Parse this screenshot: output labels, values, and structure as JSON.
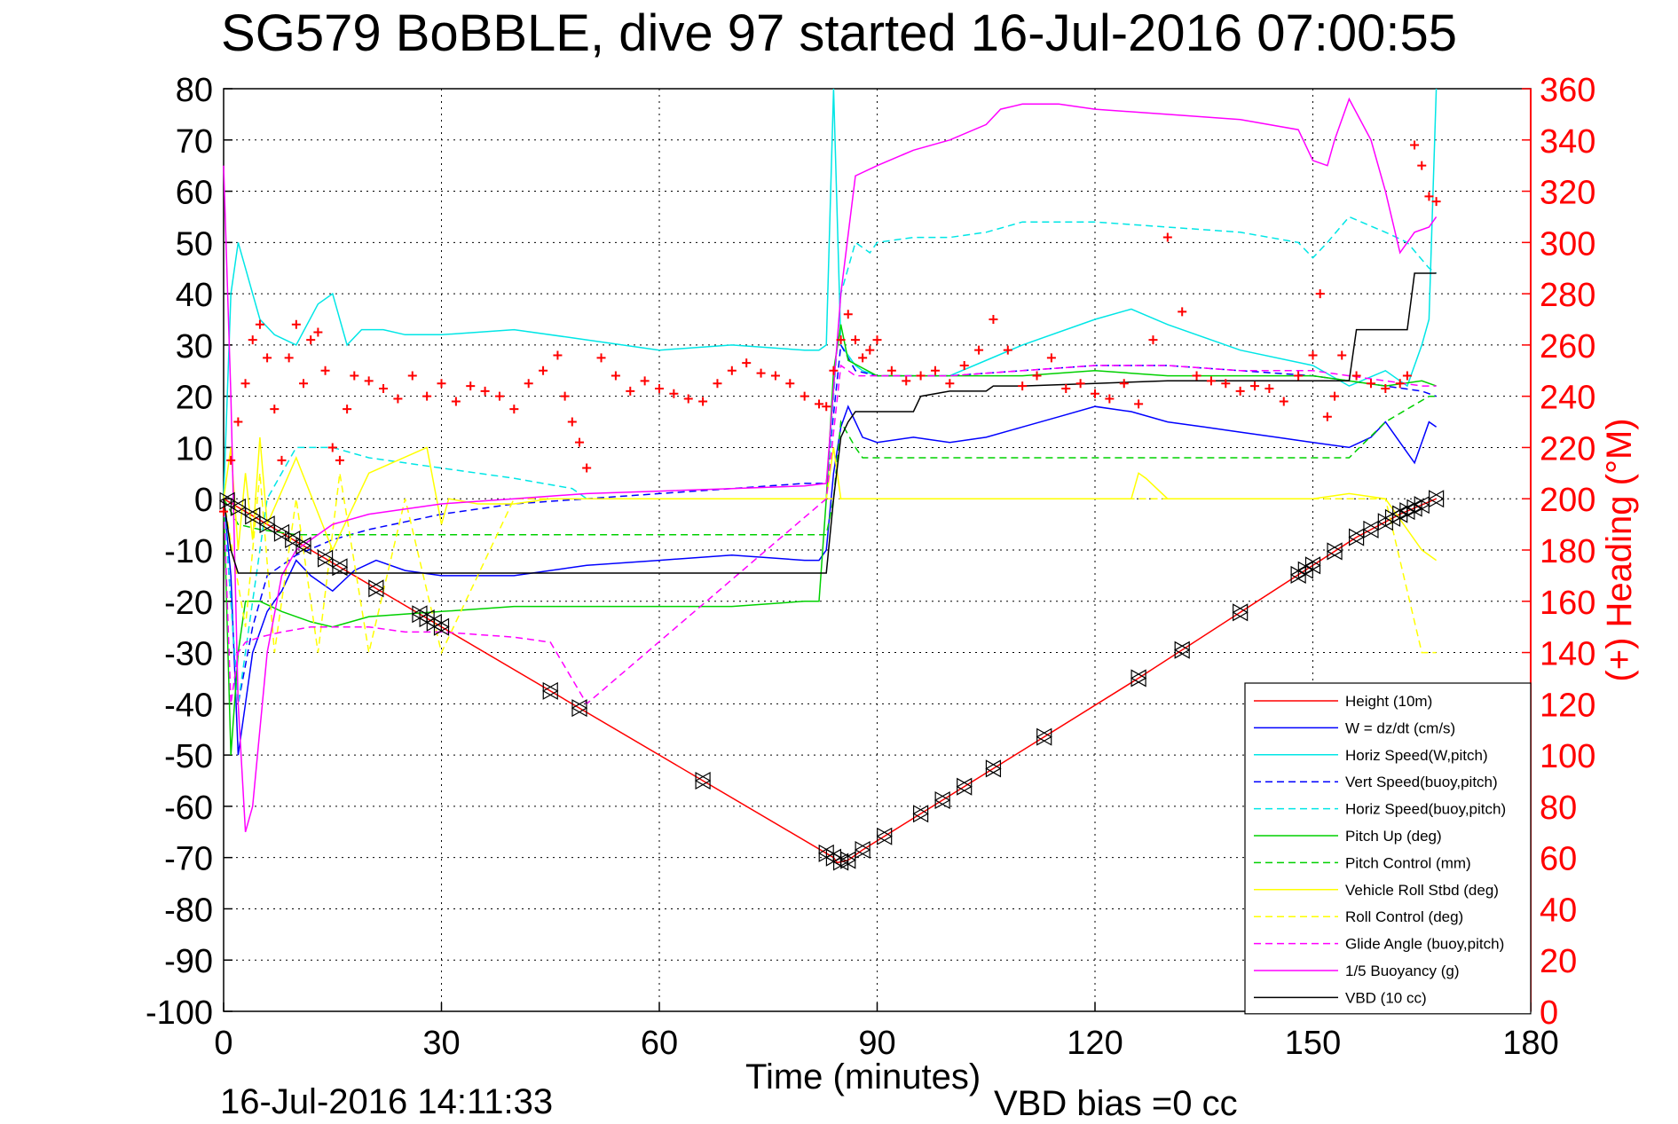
{
  "chart_data": {
    "type": "line",
    "title": "SG579 BoBBLE, dive 97 started 16-Jul-2016 07:00:55",
    "xlabel": "Time (minutes)",
    "ylabel": "",
    "y2label": "(+) Heading (°M)",
    "xlim": [
      0,
      180
    ],
    "ylim": [
      -100,
      80
    ],
    "y2lim": [
      0,
      360
    ],
    "xticks": [
      "0",
      "30",
      "60",
      "90",
      "120",
      "150",
      "180"
    ],
    "yticks": [
      "80",
      "70",
      "60",
      "50",
      "40",
      "30",
      "20",
      "10",
      "0",
      "-10",
      "-20",
      "-30",
      "-40",
      "-50",
      "-60",
      "-70",
      "-80",
      "-90",
      "-100"
    ],
    "y2ticks": [
      "360",
      "340",
      "320",
      "300",
      "280",
      "260",
      "240",
      "220",
      "200",
      "180",
      "160",
      "140",
      "120",
      "100",
      "80",
      "60",
      "40",
      "20",
      "0"
    ],
    "grid": true,
    "legend_position": "bottom-right",
    "footer_left": "16-Jul-2016 14:11:33",
    "footer_right": "VBD bias =0 cc",
    "series": [
      {
        "name": "Height (10m)",
        "color": "#ff0000",
        "dash": "solid",
        "x": [
          0,
          84,
          84.5,
          86,
          88,
          126,
          150,
          156,
          162,
          167
        ],
        "y": [
          0,
          -70,
          -71,
          -70.5,
          -68.5,
          -35,
          -13,
          -7.5,
          -3,
          0
        ]
      },
      {
        "name": "W = dz/dt (cm/s)",
        "color": "#0000ff",
        "dash": "solid",
        "x": [
          0,
          1,
          2,
          3,
          4,
          6,
          8,
          10,
          12,
          15,
          18,
          21,
          25,
          30,
          40,
          50,
          60,
          70,
          80,
          82,
          83,
          84,
          85,
          86,
          87,
          88,
          90,
          95,
          100,
          105,
          110,
          115,
          120,
          125,
          130,
          135,
          140,
          145,
          150,
          155,
          158,
          160,
          162,
          164,
          166,
          167
        ],
        "y": [
          0,
          -15,
          -50,
          -40,
          -30,
          -22,
          -18,
          -12,
          -15,
          -18,
          -14,
          -12,
          -14,
          -15,
          -15,
          -13,
          -12,
          -11,
          -12,
          -12,
          -10,
          5,
          14,
          18,
          15,
          12,
          11,
          12,
          11,
          12,
          14,
          16,
          18,
          17,
          15,
          14,
          13,
          12,
          11,
          10,
          12,
          15,
          11,
          7,
          15,
          14
        ]
      },
      {
        "name": "Horiz Speed(W,pitch)",
        "color": "#00e6e6",
        "dash": "solid",
        "x": [
          0,
          1,
          2,
          3,
          4,
          5,
          7,
          10,
          13,
          15,
          17,
          19,
          22,
          25,
          30,
          40,
          50,
          60,
          70,
          80,
          82,
          83,
          84,
          85,
          86,
          87,
          88,
          90,
          95,
          100,
          110,
          120,
          125,
          130,
          140,
          150,
          155,
          160,
          163,
          165,
          166,
          167
        ],
        "y": [
          0,
          40,
          50,
          45,
          40,
          35,
          32,
          30,
          38,
          40,
          30,
          33,
          33,
          32,
          32,
          33,
          31,
          29,
          30,
          29,
          29,
          30,
          80,
          30,
          28,
          26,
          25,
          24,
          24,
          24,
          30,
          35,
          37,
          34,
          29,
          26,
          22,
          25,
          22,
          30,
          35,
          80
        ]
      },
      {
        "name": "Vert Speed(buoy,pitch)",
        "color": "#0000ff",
        "dash": "dashed",
        "x": [
          0,
          2,
          4,
          6,
          10,
          15,
          20,
          30,
          40,
          50,
          60,
          70,
          80,
          83,
          85,
          87,
          90,
          100,
          110,
          120,
          130,
          140,
          150,
          155,
          160,
          165,
          167
        ],
        "y": [
          0,
          -40,
          -25,
          -15,
          -11,
          -8,
          -6,
          -3,
          -1,
          0,
          1,
          2,
          3,
          3,
          30,
          25,
          24,
          24,
          25,
          26,
          26,
          25,
          24,
          23,
          22,
          21,
          20
        ]
      },
      {
        "name": "Horiz Speed(buoy,pitch)",
        "color": "#00e6e6",
        "dash": "dashed",
        "x": [
          0,
          2,
          4,
          6,
          10,
          15,
          20,
          30,
          40,
          48,
          50,
          83,
          85,
          87,
          89,
          90,
          95,
          100,
          105,
          110,
          120,
          130,
          140,
          148,
          150,
          152,
          155,
          160,
          163,
          166,
          167
        ],
        "y": [
          0,
          -40,
          -20,
          0,
          10,
          10,
          8,
          6,
          4,
          2,
          0,
          0,
          40,
          50,
          48,
          50,
          51,
          51,
          52,
          54,
          54,
          53,
          52,
          50,
          47,
          50,
          55,
          52,
          50,
          45,
          44
        ]
      },
      {
        "name": "Pitch Up (deg)",
        "color": "#00d000",
        "dash": "solid",
        "x": [
          0,
          1,
          2,
          3,
          5,
          8,
          12,
          15,
          20,
          30,
          40,
          50,
          60,
          70,
          80,
          82,
          83,
          84,
          85,
          86,
          90,
          100,
          110,
          120,
          130,
          140,
          150,
          155,
          160,
          165,
          167
        ],
        "y": [
          0,
          -50,
          -30,
          -20,
          -20,
          -22,
          -24,
          -25,
          -23,
          -22,
          -21,
          -21,
          -21,
          -21,
          -20,
          -20,
          0,
          25,
          34,
          27,
          24,
          24,
          24,
          25,
          24,
          24,
          24,
          23,
          22,
          23,
          22
        ]
      },
      {
        "name": "Pitch Control (mm)",
        "color": "#00d000",
        "dash": "dashed",
        "x": [
          0,
          2,
          5,
          10,
          20,
          30,
          50,
          80,
          83,
          84,
          85,
          87,
          88,
          100,
          110,
          130,
          150,
          155,
          160,
          166,
          167
        ],
        "y": [
          0,
          -5,
          -6,
          -7,
          -7,
          -7,
          -7,
          -7,
          -7,
          0,
          15,
          10,
          8,
          8,
          8,
          8,
          8,
          8,
          15,
          20,
          20
        ]
      },
      {
        "name": "Vehicle Roll Stbd (deg)",
        "color": "#ffff00",
        "dash": "solid",
        "x": [
          0,
          1,
          2,
          3,
          4,
          5,
          6,
          10,
          15,
          20,
          28,
          30,
          31,
          35,
          40,
          45,
          50,
          60,
          70,
          80,
          83,
          84,
          85,
          90,
          100,
          110,
          120,
          125,
          126,
          127,
          130,
          140,
          150,
          155,
          160,
          165,
          167
        ],
        "y": [
          0,
          10,
          -10,
          5,
          -8,
          12,
          -5,
          8,
          -10,
          5,
          10,
          -5,
          0,
          -1,
          -1,
          0,
          0,
          0,
          0,
          0,
          0,
          10,
          0,
          0,
          0,
          0,
          0,
          0,
          5,
          4,
          0,
          0,
          0,
          1,
          0,
          -10,
          -12
        ]
      },
      {
        "name": "Roll Control (deg)",
        "color": "#ffff00",
        "dash": "dashed",
        "x": [
          0,
          3,
          5,
          7,
          10,
          13,
          16,
          20,
          25,
          30,
          40,
          50,
          60,
          70,
          80,
          90,
          100,
          110,
          120,
          130,
          140,
          150,
          155,
          160,
          165,
          167
        ],
        "y": [
          0,
          -25,
          5,
          -30,
          0,
          -30,
          5,
          -30,
          0,
          -30,
          0,
          0,
          0,
          0,
          0,
          0,
          0,
          0,
          0,
          0,
          0,
          0,
          0,
          0,
          -30,
          -30
        ]
      },
      {
        "name": "Glide Angle (buoy,pitch)",
        "color": "#ff00ff",
        "dash": "dashed",
        "x": [
          0,
          1,
          2,
          3,
          5,
          8,
          12,
          15,
          20,
          25,
          30,
          40,
          45,
          50,
          83,
          85,
          87,
          90,
          100,
          110,
          120,
          130,
          140,
          150,
          155,
          160,
          165,
          167
        ],
        "y": [
          0,
          -40,
          -30,
          -28,
          -27,
          -26,
          -25,
          -25,
          -25,
          -26,
          -26,
          -27,
          -28,
          -40,
          0,
          26,
          24,
          24,
          24,
          25,
          26,
          26,
          25,
          25,
          24,
          23,
          22,
          22
        ]
      },
      {
        "name": "1/5 Buoyancy (g)",
        "color": "#ff00ff",
        "dash": "solid",
        "x": [
          0,
          1,
          2,
          3,
          4,
          6,
          8,
          10,
          15,
          20,
          30,
          40,
          50,
          60,
          70,
          80,
          83,
          85,
          87,
          90,
          95,
          100,
          105,
          107,
          110,
          115,
          120,
          130,
          140,
          148,
          150,
          152,
          153,
          155,
          158,
          160,
          162,
          164,
          166,
          167
        ],
        "y": [
          65,
          20,
          -40,
          -65,
          -60,
          -30,
          -15,
          -10,
          -5,
          -3,
          -1,
          0,
          1,
          1.5,
          2,
          2.5,
          3,
          40,
          63,
          65,
          68,
          70,
          73,
          76,
          77,
          77,
          76,
          75,
          74,
          72,
          66,
          65,
          70,
          78,
          70,
          60,
          48,
          52,
          53,
          55
        ]
      },
      {
        "name": "VBD (10 cc)",
        "color": "#000000",
        "dash": "solid",
        "x": [
          0,
          1,
          2,
          8,
          15,
          20,
          30,
          50,
          60,
          70,
          80,
          82,
          83,
          84,
          85,
          86,
          87,
          95,
          96,
          100,
          102,
          105,
          106,
          110,
          120,
          130,
          140,
          150,
          155,
          156,
          160,
          163,
          164,
          167
        ],
        "y": [
          0,
          -10,
          -14.5,
          -14.5,
          -14.5,
          -14.5,
          -14.5,
          -14.5,
          -14.5,
          -14.5,
          -14.5,
          -14.5,
          -14.5,
          0,
          12,
          15,
          17,
          17,
          20,
          21,
          21,
          21,
          22,
          22,
          22.5,
          23,
          23,
          23,
          23,
          33,
          33,
          33,
          44,
          44
        ]
      }
    ],
    "heading_series": {
      "name": "Heading",
      "color": "#ff0000",
      "marker": "+",
      "axis": "right",
      "x": [
        0,
        1,
        2,
        3,
        4,
        5,
        6,
        7,
        8,
        9,
        10,
        11,
        12,
        13,
        14,
        15,
        16,
        17,
        18,
        20,
        22,
        24,
        26,
        28,
        30,
        32,
        34,
        36,
        38,
        40,
        42,
        44,
        46,
        47,
        48,
        49,
        50,
        52,
        54,
        56,
        58,
        60,
        62,
        64,
        66,
        68,
        70,
        72,
        74,
        76,
        78,
        80,
        82,
        83,
        84,
        85,
        86,
        87,
        88,
        89,
        90,
        92,
        94,
        96,
        98,
        100,
        102,
        104,
        106,
        108,
        110,
        112,
        114,
        116,
        118,
        120,
        122,
        124,
        126,
        128,
        130,
        132,
        134,
        136,
        138,
        140,
        142,
        144,
        146,
        148,
        150,
        151,
        152,
        153,
        154,
        156,
        158,
        160,
        162,
        163,
        164,
        165,
        166,
        167
      ],
      "y": [
        195,
        215,
        230,
        245,
        262,
        268,
        255,
        235,
        215,
        255,
        268,
        245,
        262,
        265,
        250,
        220,
        215,
        235,
        248,
        246,
        243,
        239,
        248,
        240,
        245,
        238,
        244,
        242,
        240,
        235,
        245,
        250,
        256,
        240,
        230,
        222,
        212,
        255,
        248,
        242,
        246,
        243,
        241,
        239,
        238,
        245,
        250,
        253,
        249,
        248,
        245,
        240,
        237,
        236,
        250,
        262,
        272,
        262,
        255,
        258,
        262,
        250,
        246,
        248,
        250,
        245,
        252,
        258,
        270,
        258,
        244,
        248,
        255,
        243,
        245,
        241,
        239,
        245,
        237,
        262,
        302,
        273,
        248,
        246,
        245,
        242,
        244,
        243,
        238,
        248,
        256,
        280,
        232,
        240,
        256,
        248,
        245,
        243,
        245,
        248,
        338,
        330,
        318,
        316
      ]
    },
    "marker_points": {
      "name": "data markers",
      "color": "#000000",
      "x": [
        0.5,
        2,
        4,
        6,
        8,
        9.5,
        11,
        14,
        16,
        21,
        27,
        28,
        29,
        30,
        45,
        49,
        66,
        83,
        84,
        85,
        86,
        88,
        91,
        96,
        99,
        102,
        106,
        113,
        126,
        132,
        140,
        148,
        149,
        150,
        153,
        156,
        158,
        160,
        161,
        162,
        163,
        164,
        165,
        167
      ]
    }
  }
}
